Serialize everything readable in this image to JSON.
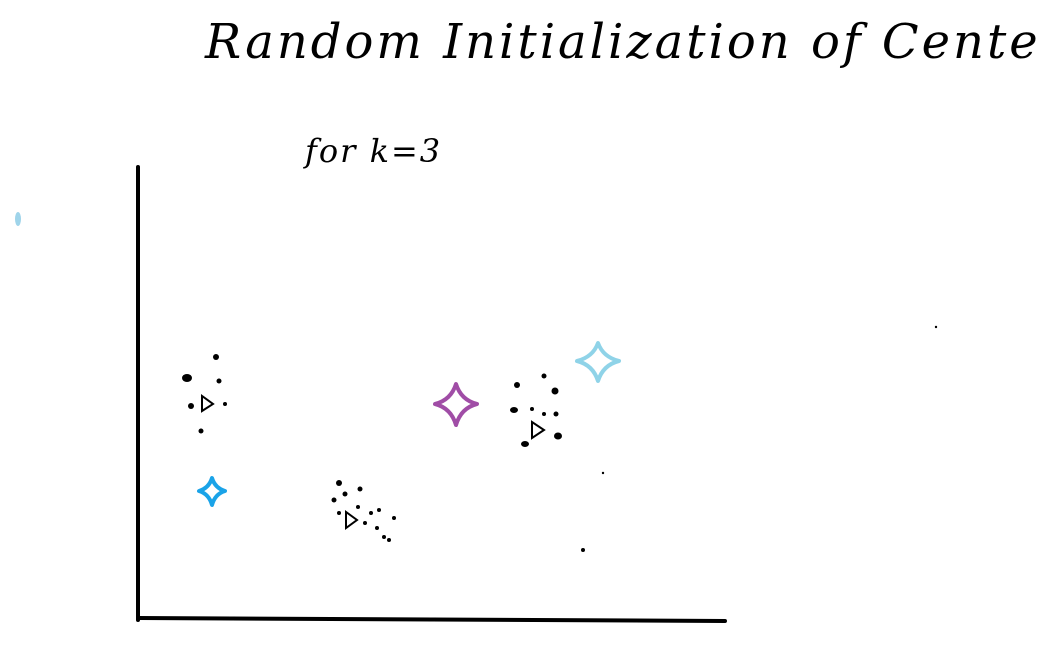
{
  "title": "Random Initialization of Centers",
  "subtitle": "for k=3",
  "colors": {
    "ink": "#000000",
    "center_1": "#1aa3e8",
    "center_2": "#a04da6",
    "center_3": "#8fd3e8",
    "stray_mark": "#9fd4ea"
  },
  "icons": {
    "data_point": "dot",
    "cluster_centroid": "triangle-outline",
    "random_center": "four-point-star"
  }
}
